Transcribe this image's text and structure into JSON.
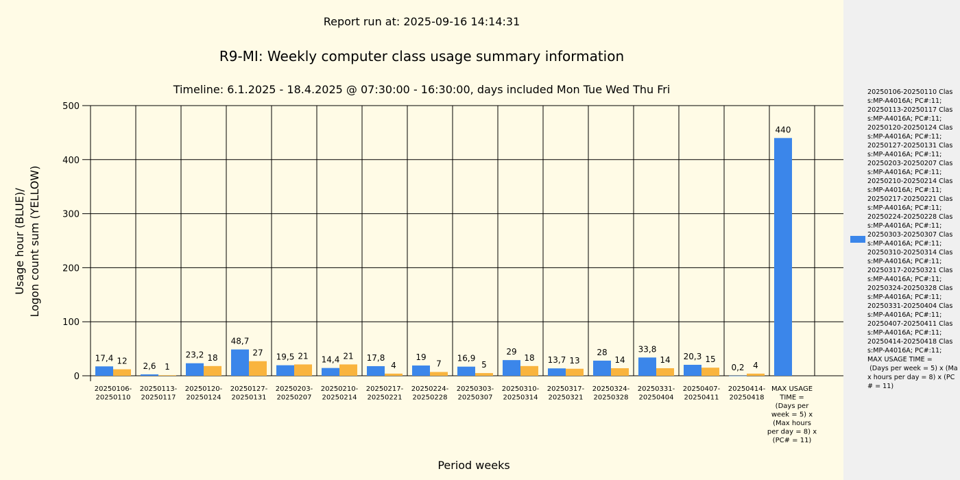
{
  "header": {
    "report_run": "Report run at: 2025-09-16 14:14:31",
    "title": "R9-MI: Weekly computer class usage summary information",
    "timeline": "Timeline:  6.1.2025  - 18.4.2025  @  07:30:00 -  16:30:00, days included Mon Tue Wed Thu Fri"
  },
  "colors": {
    "blue": "#3b86ea",
    "yellow": "#f9b43e",
    "plot_bg": "#fffbe6",
    "legend_bg": "#f0f0f0"
  },
  "chart_data": {
    "type": "bar",
    "title": "R9-MI: Weekly computer class usage summary information",
    "xlabel": "Period weeks",
    "ylabel_lines": [
      "Usage hour (BLUE)/",
      "Logon count sum (YELLOW)"
    ],
    "ylim": [
      0,
      500
    ],
    "yticks": [
      0,
      100,
      200,
      300,
      400,
      500
    ],
    "grid": true,
    "legend_placement": "right",
    "categories": [
      "20250106-\n20250110",
      "20250113-\n20250117",
      "20250120-\n20250124",
      "20250127-\n20250131",
      "20250203-\n20250207",
      "20250210-\n20250214",
      "20250217-\n20250221",
      "20250224-\n20250228",
      "20250303-\n20250307",
      "20250310-\n20250314",
      "20250317-\n20250321",
      "20250324-\n20250328",
      "20250331-\n20250404",
      "20250407-\n20250411",
      "20250414-\n20250418",
      "MAX USAGE\nTIME =\n(Days per\nweek = 5) x\n(Max hours\nper day = 8) x\n(PC# = 11)"
    ],
    "series": [
      {
        "color": "#3b86ea",
        "values": [
          17.4,
          2.6,
          23.2,
          48.7,
          19.5,
          14.4,
          17.8,
          19,
          16.9,
          29,
          13.7,
          28,
          33.8,
          20.3,
          0.2,
          440
        ],
        "labels": [
          "17,4",
          "2,6",
          "23,2",
          "48,7",
          "19,5",
          "14,4",
          "17,8",
          "19",
          "16,9",
          "29",
          "13,7",
          "28",
          "33,8",
          "20,3",
          "0,2",
          "440"
        ]
      },
      {
        "color": "#f9b43e",
        "values": [
          12,
          1,
          18,
          27,
          21,
          21,
          4,
          7,
          5,
          18,
          13,
          14,
          14,
          15,
          4,
          null
        ],
        "labels": [
          "12",
          "1",
          "18",
          "27",
          "21",
          "21",
          "4",
          "7",
          "5",
          "18",
          "13",
          "14",
          "14",
          "15",
          "4",
          ""
        ]
      }
    ]
  },
  "legend": {
    "entries": [
      "20250106-20250110 Class:MP-A4016A; PC#:11;",
      "20250113-20250117 Class:MP-A4016A; PC#:11;",
      "20250120-20250124 Class:MP-A4016A; PC#:11;",
      "20250127-20250131 Class:MP-A4016A; PC#:11;",
      "20250203-20250207 Class:MP-A4016A; PC#:11;",
      "20250210-20250214 Class:MP-A4016A; PC#:11;",
      "20250217-20250221 Class:MP-A4016A; PC#:11;",
      "20250224-20250228 Class:MP-A4016A; PC#:11;",
      "20250303-20250307 Class:MP-A4016A; PC#:11;",
      "20250310-20250314 Class:MP-A4016A; PC#:11;",
      "20250317-20250321 Class:MP-A4016A; PC#:11;",
      "20250324-20250328 Class:MP-A4016A; PC#:11;",
      "20250331-20250404 Class:MP-A4016A; PC#:11;",
      "20250407-20250411 Class:MP-A4016A; PC#:11;",
      "20250414-20250418 Class:MP-A4016A; PC#:11;",
      "MAX USAGE TIME =\n (Days per week = 5) x (Max hours per day = 8) x (PC# = 11)"
    ]
  }
}
